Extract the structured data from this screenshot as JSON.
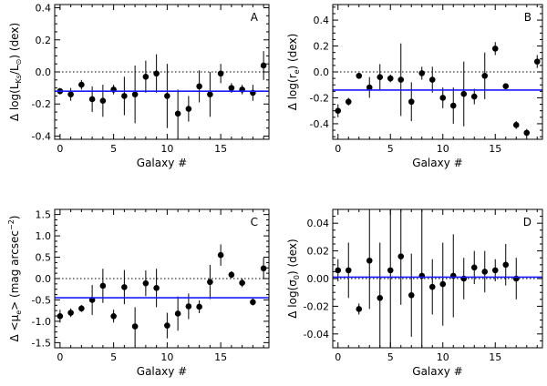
{
  "colors": {
    "mean_line": "#1a1aff",
    "ink": "#000000"
  },
  "chart_data": [
    {
      "type": "scatter",
      "panel": "A",
      "xlabel": "Galaxy #",
      "ylabel": "Δ log(L_Ks/L_⊙) (dex)",
      "ylabel_main": "Δ log(L",
      "ylabel_sub": "Ks",
      "ylabel_mid": "/L",
      "ylabel_sub2": "⊙",
      "ylabel_end": ") (dex)",
      "xlim": [
        -0.5,
        19.5
      ],
      "ylim": [
        -0.42,
        0.42
      ],
      "xticks": [
        0,
        5,
        10,
        15
      ],
      "xtick_labels": [
        "0",
        "5",
        "10",
        "15"
      ],
      "yticks": [
        -0.4,
        -0.2,
        0.0,
        0.2,
        0.4
      ],
      "ytick_labels": [
        "-0.4",
        "-0.2",
        "0.0",
        "0.2",
        "0.4"
      ],
      "mean": -0.12,
      "x": [
        0,
        1,
        2,
        3,
        4,
        5,
        6,
        7,
        8,
        9,
        10,
        11,
        12,
        13,
        14,
        15,
        16,
        17,
        18,
        19
      ],
      "y": [
        -0.12,
        -0.14,
        -0.08,
        -0.17,
        -0.18,
        -0.11,
        -0.15,
        -0.14,
        -0.03,
        -0.01,
        -0.15,
        -0.26,
        -0.23,
        -0.09,
        -0.14,
        -0.01,
        -0.1,
        -0.11,
        -0.13,
        0.04
      ],
      "yerr": [
        0.02,
        0.04,
        0.03,
        0.08,
        0.1,
        0.03,
        0.12,
        0.18,
        0.1,
        0.12,
        0.2,
        0.15,
        0.08,
        0.1,
        0.14,
        0.06,
        0.03,
        0.03,
        0.05,
        0.09
      ]
    },
    {
      "type": "scatter",
      "panel": "B",
      "xlabel": "Galaxy #",
      "ylabel": "Δ log(r_e) (dex)",
      "ylabel_main": "Δ log(r",
      "ylabel_sub": "e",
      "ylabel_mid": ") (dex)",
      "ylabel_sub2": "",
      "ylabel_end": "",
      "xlim": [
        -0.5,
        19.5
      ],
      "ylim": [
        -0.52,
        0.52
      ],
      "xticks": [
        0,
        5,
        10,
        15
      ],
      "xtick_labels": [
        "0",
        "5",
        "10",
        "15"
      ],
      "yticks": [
        -0.4,
        -0.2,
        0.0,
        0.2,
        0.4
      ],
      "ytick_labels": [
        "-0.4",
        "-0.2",
        "0.0",
        "0.2",
        "0.4"
      ],
      "mean": -0.14,
      "x": [
        0,
        1,
        2,
        3,
        4,
        5,
        6,
        7,
        8,
        9,
        10,
        11,
        12,
        13,
        14,
        15,
        16,
        17,
        18,
        19
      ],
      "y": [
        -0.3,
        -0.23,
        -0.03,
        -0.12,
        -0.04,
        -0.05,
        -0.06,
        -0.23,
        -0.01,
        -0.06,
        -0.2,
        -0.26,
        -0.17,
        -0.19,
        -0.03,
        0.18,
        -0.11,
        -0.41,
        -0.47,
        0.08
      ],
      "yerr": [
        0.05,
        0.03,
        0.02,
        0.08,
        0.1,
        0.03,
        0.28,
        0.15,
        0.05,
        0.1,
        0.08,
        0.14,
        0.25,
        0.06,
        0.18,
        0.05,
        0.02,
        0.03,
        0.03,
        0.05
      ]
    },
    {
      "type": "scatter",
      "panel": "C",
      "xlabel": "Galaxy #",
      "ylabel": "Δ <μ_e> (mag arcsec⁻²)",
      "ylabel_main": "Δ <μ",
      "ylabel_sub": "e",
      "ylabel_mid": "> (mag arcsec",
      "ylabel_sub2": "",
      "ylabel_end": "",
      "ylabel_sup": "−2",
      "ylabel_close": ")",
      "xlim": [
        -0.5,
        19.5
      ],
      "ylim": [
        -1.62,
        1.62
      ],
      "xticks": [
        0,
        5,
        10,
        15
      ],
      "xtick_labels": [
        "0",
        "5",
        "10",
        "15"
      ],
      "yticks": [
        -1.5,
        -1.0,
        -0.5,
        0.0,
        0.5,
        1.0,
        1.5
      ],
      "ytick_labels": [
        "-1.5",
        "-1.0",
        "-0.5",
        "0.0",
        "0.5",
        "1.0",
        "1.5"
      ],
      "mean": -0.45,
      "x": [
        0,
        1,
        2,
        3,
        4,
        5,
        6,
        7,
        8,
        9,
        10,
        11,
        12,
        13,
        14,
        15,
        16,
        17,
        18,
        19
      ],
      "y": [
        -0.88,
        -0.8,
        -0.7,
        -0.5,
        -0.17,
        -0.88,
        -0.2,
        -1.12,
        -0.11,
        -0.22,
        -1.1,
        -0.82,
        -0.65,
        -0.66,
        -0.08,
        0.55,
        0.09,
        -0.1,
        -0.55,
        0.24
      ],
      "yerr": [
        0.15,
        0.1,
        0.08,
        0.35,
        0.4,
        0.15,
        0.4,
        0.45,
        0.3,
        0.45,
        0.3,
        0.4,
        0.3,
        0.15,
        0.4,
        0.25,
        0.08,
        0.1,
        0.08,
        0.25
      ]
    },
    {
      "type": "scatter",
      "panel": "D",
      "xlabel": "Galaxy #",
      "ylabel": "Δ log(σ_0) (dex)",
      "ylabel_main": "Δ log(σ",
      "ylabel_sub": "0",
      "ylabel_mid": ") (dex)",
      "ylabel_sub2": "",
      "ylabel_end": "",
      "xlim": [
        -0.5,
        19.5
      ],
      "ylim": [
        -0.05,
        0.05
      ],
      "xticks": [
        0,
        5,
        10,
        15
      ],
      "xtick_labels": [
        "0",
        "5",
        "10",
        "15"
      ],
      "yticks": [
        -0.04,
        -0.02,
        0.0,
        0.02,
        0.04
      ],
      "ytick_labels": [
        "-0.04",
        "-0.02",
        "0.00",
        "0.02",
        "0.04"
      ],
      "mean": 0.001,
      "x": [
        0,
        1,
        2,
        3,
        4,
        5,
        6,
        7,
        8,
        9,
        10,
        11,
        12,
        13,
        14,
        15,
        16,
        17
      ],
      "y": [
        0.006,
        0.006,
        -0.022,
        0.013,
        -0.014,
        0.006,
        0.016,
        -0.012,
        0.002,
        -0.006,
        -0.004,
        0.002,
        0.0,
        0.008,
        0.005,
        0.006,
        0.01,
        0.0
      ],
      "yerr": [
        0.008,
        0.02,
        0.004,
        0.035,
        0.04,
        0.06,
        0.035,
        0.03,
        0.06,
        0.02,
        0.03,
        0.03,
        0.015,
        0.012,
        0.015,
        0.008,
        0.015,
        0.015
      ]
    }
  ]
}
